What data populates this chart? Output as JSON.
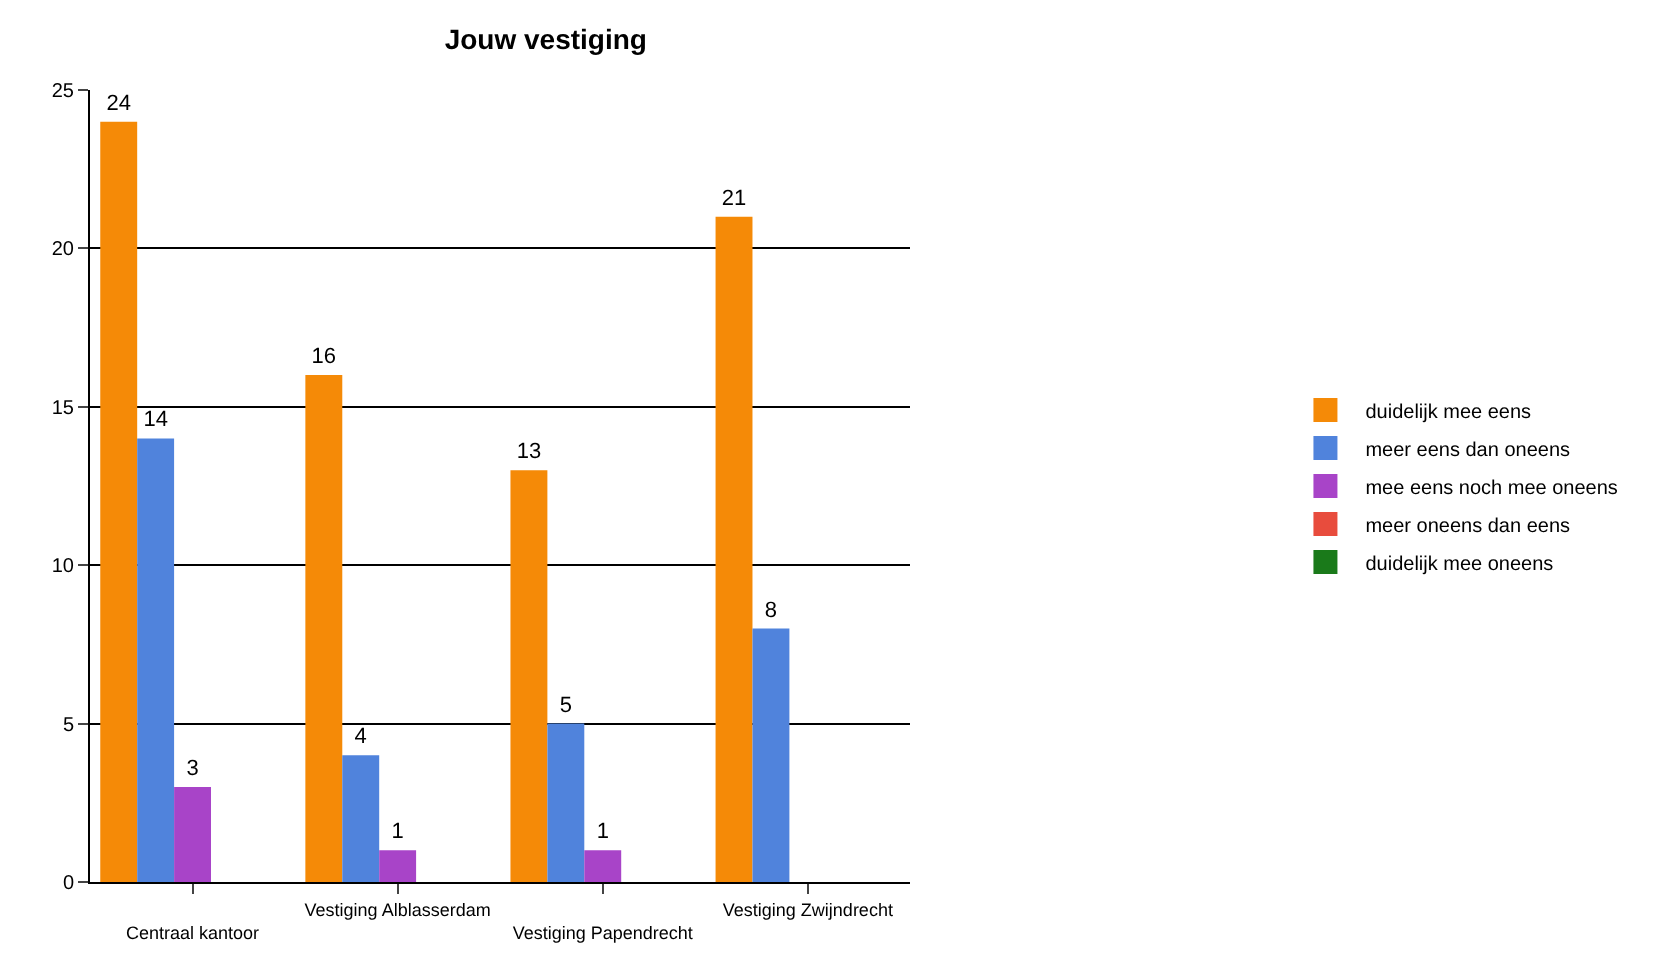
{
  "chart_data": {
    "type": "bar",
    "title": "Jouw vestiging",
    "categories": [
      "Centraal kantoor",
      "Vestiging Alblasserdam",
      "Vestiging Papendrecht",
      "Vestiging Zwijndrecht"
    ],
    "series": [
      {
        "name": "duidelijk mee eens",
        "color": "#f58a07",
        "values": [
          24,
          16,
          13,
          21
        ],
        "value_labels": [
          "24",
          "16",
          "13",
          "21"
        ]
      },
      {
        "name": "meer eens dan oneens",
        "color": "#5083dc",
        "values": [
          14,
          4,
          5,
          8
        ],
        "value_labels": [
          "14",
          "4",
          "5",
          "8"
        ]
      },
      {
        "name": "mee eens noch mee oneens",
        "color": "#a844c8",
        "values": [
          3,
          1,
          1,
          0
        ],
        "value_labels": [
          "3",
          "1",
          "1",
          null
        ]
      },
      {
        "name": "meer oneens dan eens",
        "color": "#e84c3d",
        "values": [
          0,
          0,
          0,
          0
        ],
        "value_labels": [
          null,
          null,
          null,
          null
        ]
      },
      {
        "name": "duidelijk mee oneens",
        "color": "#1a7a1a",
        "values": [
          0,
          0,
          0,
          0
        ],
        "value_labels": [
          null,
          null,
          null,
          null
        ]
      }
    ],
    "ylim": [
      0,
      25
    ],
    "yticks": [
      0,
      5,
      10,
      15,
      20,
      25
    ],
    "grid": "y",
    "legend": "right"
  }
}
